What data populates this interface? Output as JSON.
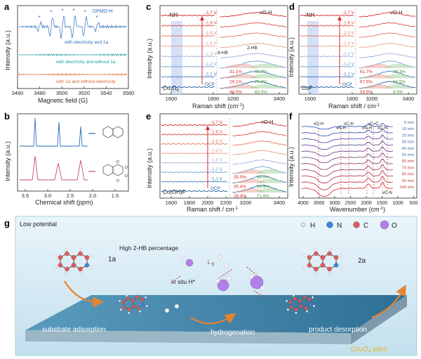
{
  "colors": {
    "blue": "#2a6ebb",
    "teal": "#1a9a9a",
    "orange": "#d9682a",
    "red": "#d62728",
    "pink": "#c8486a",
    "green": "#6aaa4a",
    "panel_bg": "#cfe6f0",
    "slab_top": "#3f84a8",
    "accent_orange": "#e8832e"
  },
  "panel_a": {
    "label": "a",
    "legend": "DPMO-H",
    "traces": [
      "with electricity and 1a",
      "with electricity and without 1a",
      "with 1a and without electricity"
    ],
    "xlabel": "Magnetic field (G)",
    "ylabel": "Intensity (a.u.)",
    "xticks": [
      "3460",
      "3480",
      "3500",
      "3520",
      "3540",
      "3560"
    ]
  },
  "panel_b": {
    "label": "b",
    "xlabel": "Chemical shift (ppm)",
    "ylabel": "Intensity (a.u.)",
    "xticks": [
      "3.5",
      "3.0",
      "2.5",
      "2.0",
      "1.5"
    ],
    "d_labels": [
      "D",
      "D",
      "D",
      "D"
    ]
  },
  "panel_c": {
    "label": "c",
    "nh": "-NH",
    "voh": "vO-H",
    "ylabel": "Intensity (a.u.)",
    "xlabel": "Raman shift (cm",
    "xlabel_sup": "-1",
    "material": "Co",
    "material_sub1": "3",
    "material_2": "O",
    "material_sub2": "4",
    "voltages": [
      "-1.7 V",
      "-1.6 V",
      "-1.5 V",
      "-1.4 V",
      "-1.3 V",
      "-1.2 V",
      "-1.1 V",
      "OCP"
    ],
    "hb4": "4-HB",
    "hb2": "2-HB",
    "pct_left": [
      "31.1%",
      "29.1%",
      "40.0%"
    ],
    "pct_right": [
      "68.9%",
      "70.9%",
      "60.0%"
    ],
    "xticks_left": [
      "1600",
      "1800"
    ],
    "xticks_right": [
      "3200",
      "3400"
    ]
  },
  "panel_d": {
    "label": "d",
    "nh": "-NH",
    "voh": "vO-H",
    "ylabel": "Intensity (a.u.)",
    "xlabel": "Raman shift / cm",
    "xlabel_sup": "-1",
    "material": "CoP",
    "voltages": [
      "-1.7 V",
      "-1.6 V",
      "-1.5 V",
      "-1.4 V",
      "-1.3 V",
      "-1.2 V",
      "-1.1 V",
      "OCP"
    ],
    "pct_left": [
      "61.7%",
      "67.5%",
      "93.5%"
    ],
    "pct_right": [
      "38.3%",
      "32.5%",
      "6.5%"
    ],
    "xticks_left": [
      "1600",
      "1800"
    ],
    "xticks_right": [
      "3200",
      "3400"
    ]
  },
  "panel_e": {
    "label": "e",
    "voh": "vO-H",
    "ylabel": "Intensity (a.u.)",
    "xlabel": "Raman shift / cm",
    "xlabel_sup": "-1",
    "material": "Co(OH)F",
    "voltages": [
      "-1.7 V",
      "-1.6 V",
      "-1.5 V",
      "-1.4 V",
      "-1.3 V",
      "-1.2 V",
      "-1.1 V",
      "OCP"
    ],
    "pct_left": [
      "35.0%",
      "35.4%",
      "28.4%"
    ],
    "pct_right": [
      "65.0%",
      "64.6%",
      "71.6%"
    ],
    "xticks_left": [
      "1600",
      "1800",
      "2000",
      "2200"
    ],
    "xticks_right": [
      "3200",
      "3400"
    ]
  },
  "panel_f": {
    "label": "f",
    "ylabel": "Intensity (a.u.)",
    "xlabel": "Wavenumber (cm",
    "xlabel_sup": "-1",
    "xticks": [
      "4000",
      "3500",
      "3000",
      "2500",
      "2000",
      "1500",
      "1000",
      "500"
    ],
    "bands": [
      "vO-H",
      "vN-H",
      "vC-H",
      "δN-H",
      "vC=C",
      "δC-H",
      "vC-N"
    ],
    "times": [
      "0 min",
      "10 min",
      "20 min",
      "30 min",
      "40 min",
      "50 min",
      "60 min",
      "70 min",
      "80 min",
      "90 min",
      "100 min"
    ]
  },
  "panel_g": {
    "label": "g",
    "low_potential": "Low potential",
    "legend": [
      {
        "sym": "H",
        "color": "#dde3ea"
      },
      {
        "sym": "N",
        "color": "#3a86d8"
      },
      {
        "sym": "C",
        "color": "#e05a5a"
      },
      {
        "sym": "O",
        "color": "#b27fe8"
      }
    ],
    "high": "High 2-HB percentage",
    "h2": "H",
    "h2_sub": "2",
    "insitu": "in situ H*",
    "mol1": "1a",
    "mol2": "2a",
    "steps": [
      "substrate adsorption",
      "hydrogenation",
      "product desorption"
    ],
    "sites": "Co",
    "sites_sub1": "3",
    "sites_2": "O",
    "sites_sub2": "4",
    "sites_3": " sites"
  }
}
